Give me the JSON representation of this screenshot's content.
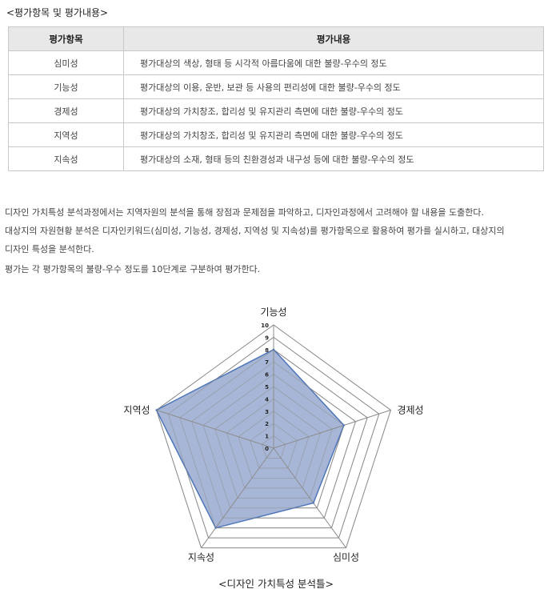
{
  "section_title": "<평가항목 및 평가내용>",
  "table": {
    "headers": [
      "평가항목",
      "평가내용"
    ],
    "rows": [
      [
        "심미성",
        "평가대상의 색상, 형태 등 시각적 아름다움에 대한 불량-우수의 정도"
      ],
      [
        "기능성",
        "평가대상의 이용, 운반, 보관 등 사용의 편리성에 대한 불량-우수의 정도"
      ],
      [
        "경제성",
        "평가대상의 가치창조, 합리성 및 유지관리 측면에 대한 불량-우수의 정도"
      ],
      [
        "지역성",
        "평가대상의 가치창조, 합리성 및 유지관리 측면에 대한 불량-우수의 정도"
      ],
      [
        "지속성",
        "평가대상의 소재, 형태 등의 친환경성과 내구성 등에 대한 불량-우수의 정도"
      ]
    ]
  },
  "paragraph_lines": [
    "디자인 가치특성 분석과정에서는 지역자원의 분석을 통해 장점과 문제점을 파악하고, 디자인과정에서 고려해야 할 내용을 도출한다.",
    "대상지의 자원현황 분석은 디자인키워드(심미성, 기능성, 경제성, 지역성 및 지속성)를 평가항목으로 활용하여 평가를 실시하고, 대상지의",
    "디자인 특성을 분석한다.",
    "평가는 각 평가항목의 불량-우수 정도를 10단계로 구분하여 평가한다."
  ],
  "chart_data": {
    "type": "radar",
    "categories": [
      "기능성",
      "경제성",
      "심미성",
      "지속성",
      "지역성"
    ],
    "values": [
      8,
      6,
      5.5,
      8,
      10
    ],
    "range": [
      0,
      10
    ],
    "ticks": [
      "0",
      "1",
      "2",
      "3",
      "4",
      "5",
      "6",
      "7",
      "8",
      "9",
      "10"
    ],
    "fill_color": "#a7b6d6",
    "line_color": "#4f76b8",
    "grid_color": "#8c8c8c"
  },
  "caption": "<디자인 가치특성 분석틀>"
}
